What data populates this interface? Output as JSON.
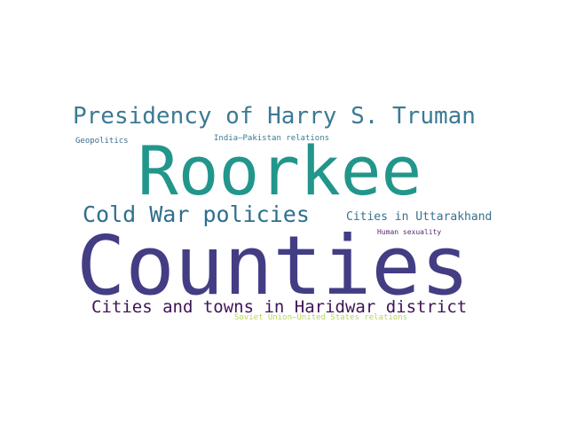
{
  "words": {
    "presidency": {
      "text": "Presidency of Harry S. Truman",
      "color": "#3b7a93"
    },
    "geopolitics": {
      "text": "Geopolitics",
      "color": "#3f6e8c"
    },
    "india_pakistan": {
      "text": "India–Pakistan relations",
      "color": "#3c7b92"
    },
    "roorkee": {
      "text": "Roorkee",
      "color": "#22968b"
    },
    "coldwar": {
      "text": "Cold War policies",
      "color": "#2f6f8d"
    },
    "uttarakhand": {
      "text": "Cities in Uttarakhand",
      "color": "#3b6f8f"
    },
    "human": {
      "text": "Human sexuality",
      "color": "#5b2a72"
    },
    "counties": {
      "text": "Counties",
      "color": "#433d84"
    },
    "haridwar": {
      "text": "Cities and towns in Haridwar district",
      "color": "#3f1456"
    },
    "soviet": {
      "text": "Soviet Union–United States relations",
      "color": "#b7d65a"
    }
  }
}
